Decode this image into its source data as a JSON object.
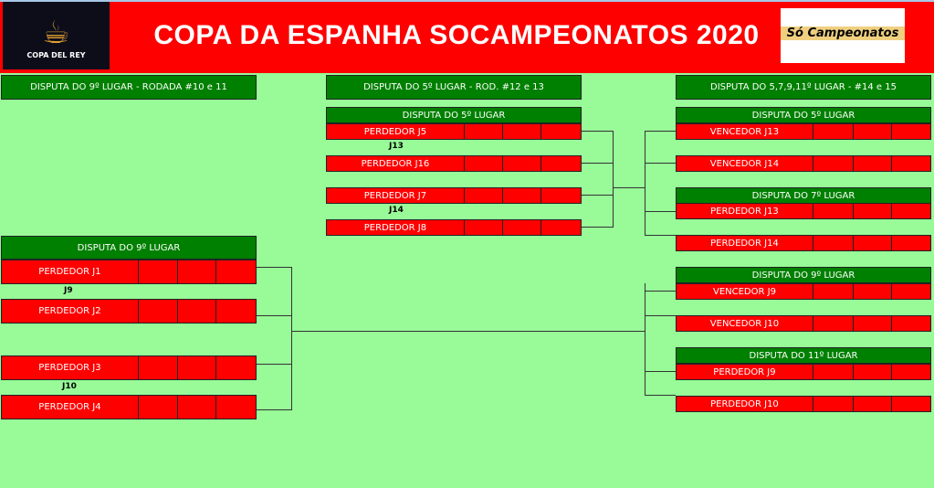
{
  "header": {
    "title": "COPA DA ESPANHA SOCAMPEONATOS 2020",
    "left_logo_text": "COPA DEL REY",
    "right_logo_text": "Só Campeonatos"
  },
  "sections": [
    "DISPUTA DO 9º LUGAR - RODADA #10 e 11",
    "DISPUTA DO 5º LUGAR - ROD. #12 e 13",
    "DISPUTA DO 5,7,9,11º LUGAR - #14 e 15"
  ],
  "middle": {
    "header": "DISPUTA DO 5º LUGAR",
    "rows": [
      "PERDEDOR J5",
      "PERDEDOR J16",
      "PERDEDOR J7",
      "PERDEDOR J8"
    ],
    "games": [
      "J13",
      "J14"
    ]
  },
  "left": {
    "header": "DISPUTA DO 9º LUGAR",
    "rows": [
      "PERDEDOR J1",
      "PERDEDOR J2",
      "PERDEDOR J3",
      "PERDEDOR J4"
    ],
    "games": [
      "J9",
      "J10"
    ]
  },
  "right": {
    "headers": [
      "DISPUTA DO 5º LUGAR",
      "DISPUTA DO 7º LUGAR",
      "DISPUTA DO 9º LUGAR",
      "DISPUTA DO 11º LUGAR"
    ],
    "rows": [
      "VENCEDOR J13",
      "VENCEDOR J14",
      "PERDEDOR J13",
      "PERDEDOR J14",
      "VENCEDOR J9",
      "VENCEDOR J10",
      "PERDEDOR J9",
      "PERDEDOR J10"
    ]
  },
  "colors": {
    "banner": "#ff0000",
    "header_green": "#008000",
    "background": "#98fb98"
  }
}
